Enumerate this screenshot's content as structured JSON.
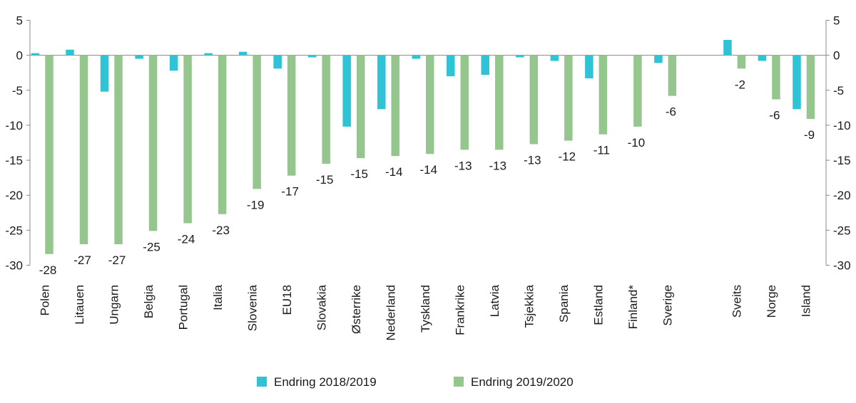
{
  "chart_data": {
    "type": "bar",
    "categories": [
      "Polen",
      "Litauen",
      "Ungarn",
      "Belgia",
      "Portugal",
      "Italia",
      "Slovenia",
      "EU18",
      "Slovakia",
      "Østerrike",
      "Nederland",
      "Tyskland",
      "Frankrike",
      "Latvia",
      "Tsjekkia",
      "Spania",
      "Estland",
      "Finland*",
      "Sverige",
      "",
      "Sveits",
      "Norge",
      "Island"
    ],
    "series": [
      {
        "name": "Endring 2018/2019",
        "color": "#2ec4d6",
        "values": [
          0.3,
          0.8,
          -5.2,
          -0.5,
          -2.2,
          0.3,
          0.5,
          -1.9,
          -0.3,
          -10.2,
          -7.7,
          -0.5,
          -3.0,
          -2.8,
          -0.3,
          -0.8,
          -3.3,
          null,
          -1.1,
          null,
          2.2,
          -0.8,
          -7.7
        ]
      },
      {
        "name": "Endring 2019/2020",
        "color": "#95c68e",
        "values": [
          -28.4,
          -27.0,
          -27.0,
          -25.1,
          -24.0,
          -22.7,
          -19.1,
          -17.2,
          -15.5,
          -14.7,
          -14.4,
          -14.1,
          -13.5,
          -13.5,
          -12.7,
          -12.2,
          -11.3,
          -10.2,
          -5.8,
          null,
          -1.9,
          -6.3,
          -9.1
        ],
        "labels": [
          "-28",
          "-27",
          "-27",
          "-25",
          "-24",
          "-23",
          "-19",
          "-17",
          "-15",
          "-15",
          "-14",
          "-14",
          "-13",
          "-13",
          "-13",
          "-12",
          "-11",
          "-10",
          "-6",
          "",
          "-2",
          "-6",
          "-9"
        ]
      }
    ],
    "ylim": [
      -30,
      5
    ],
    "yticks": [
      5,
      0,
      -5,
      -10,
      -15,
      -20,
      -25,
      -30
    ],
    "grid": false,
    "legend_position": "bottom-center",
    "title": "",
    "xlabel": "",
    "ylabel": ""
  }
}
